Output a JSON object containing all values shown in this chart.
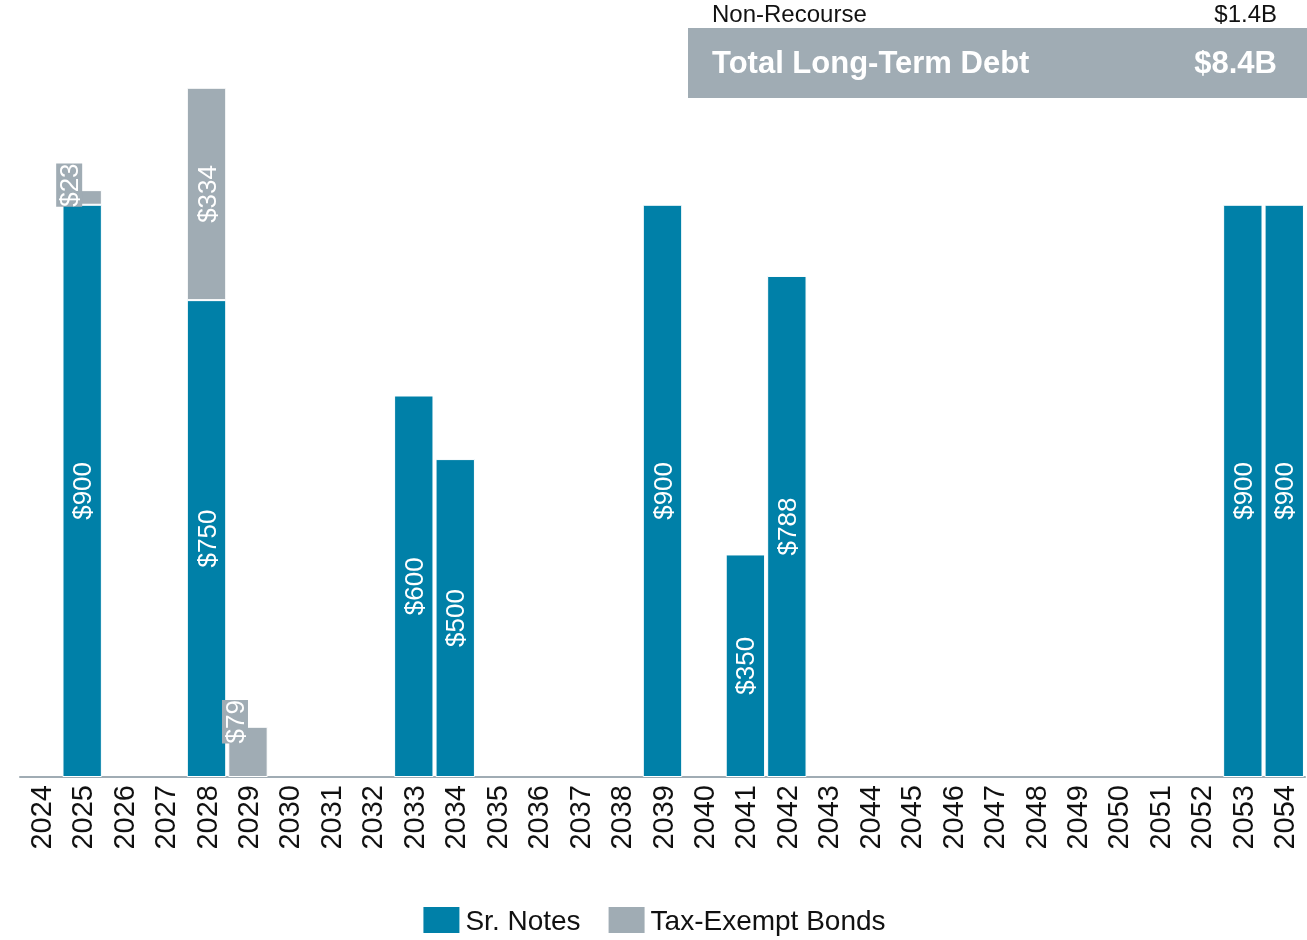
{
  "chart_data": {
    "type": "bar",
    "stacked": true,
    "tick_labels": "x",
    "categories": [
      "2024",
      "2025",
      "2026",
      "2027",
      "2028",
      "2029",
      "2030",
      "2031",
      "2032",
      "2033",
      "2034",
      "2035",
      "2036",
      "2037",
      "2038",
      "2039",
      "2040",
      "2041",
      "2042",
      "2043",
      "2044",
      "2045",
      "2046",
      "2047",
      "2048",
      "2049",
      "2050",
      "2051",
      "2052",
      "2053",
      "2054"
    ],
    "series": [
      {
        "name": "Sr. Notes",
        "color": "#0080a8",
        "values": [
          null,
          900,
          null,
          null,
          750,
          null,
          null,
          null,
          null,
          600,
          500,
          null,
          null,
          null,
          null,
          900,
          null,
          350,
          788,
          null,
          null,
          null,
          null,
          null,
          null,
          null,
          null,
          null,
          null,
          900,
          900
        ],
        "value_labels": [
          null,
          "$900",
          null,
          null,
          "$750",
          null,
          null,
          null,
          null,
          "$600",
          "$500",
          null,
          null,
          null,
          null,
          "$900",
          null,
          "$350",
          "$788",
          null,
          null,
          null,
          null,
          null,
          null,
          null,
          null,
          null,
          null,
          "$900",
          "$900"
        ]
      },
      {
        "name": "Tax-Exempt Bonds",
        "color": "#a0acb4",
        "values": [
          null,
          23,
          null,
          null,
          334,
          79,
          null,
          null,
          null,
          null,
          null,
          null,
          null,
          null,
          null,
          null,
          null,
          null,
          null,
          null,
          null,
          null,
          null,
          null,
          null,
          null,
          null,
          null,
          null,
          null,
          null
        ],
        "value_labels": [
          null,
          "$23",
          null,
          null,
          "$334",
          "$79",
          null,
          null,
          null,
          null,
          null,
          null,
          null,
          null,
          null,
          null,
          null,
          null,
          null,
          null,
          null,
          null,
          null,
          null,
          null,
          null,
          null,
          null,
          null,
          null,
          null
        ]
      }
    ],
    "legend": "bottom",
    "grid": false,
    "annotations": [
      "Non-Recourse",
      "$1.4B",
      "Total Long-Term Debt",
      "$8.4B"
    ]
  }
}
